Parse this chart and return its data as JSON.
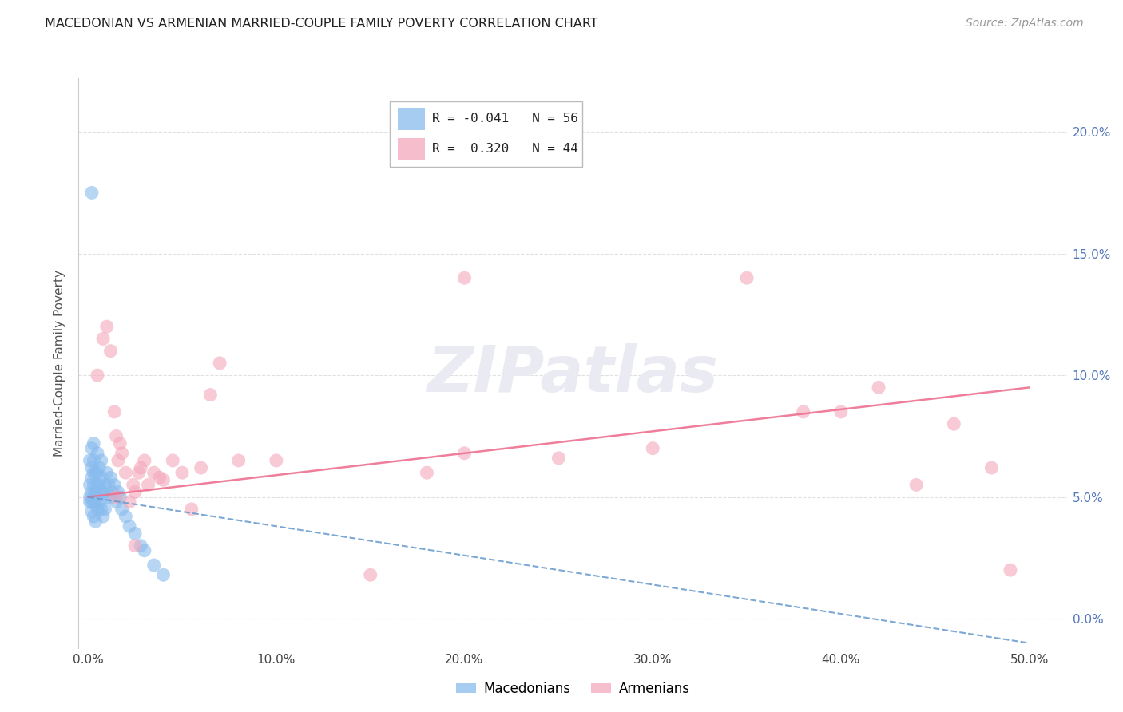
{
  "title": "MACEDONIAN VS ARMENIAN MARRIED-COUPLE FAMILY POVERTY CORRELATION CHART",
  "source": "Source: ZipAtlas.com",
  "xlabel_ticks": [
    "0.0%",
    "10.0%",
    "20.0%",
    "30.0%",
    "40.0%",
    "50.0%"
  ],
  "ylabel_ticks": [
    "0.0%",
    "5.0%",
    "10.0%",
    "15.0%",
    "20.0%"
  ],
  "xlabel_vals": [
    0.0,
    0.1,
    0.2,
    0.3,
    0.4,
    0.5
  ],
  "ylabel_vals": [
    0.0,
    0.05,
    0.1,
    0.15,
    0.2
  ],
  "xlim": [
    -0.005,
    0.52
  ],
  "ylim": [
    -0.012,
    0.222
  ],
  "macedonian_color": "#88BBEE",
  "armenian_color": "#F4A8BC",
  "macedonian_line_color": "#6699CC",
  "armenian_line_color": "#EE7090",
  "grid_color": "#DDDDDD",
  "tick_color": "#5577BB",
  "legend_macedonian_R": "-0.041",
  "legend_macedonian_N": "56",
  "legend_armenian_R": "0.320",
  "legend_armenian_N": "44",
  "watermark": "ZIPatlas",
  "macedonian_x": [
    0.001,
    0.001,
    0.001,
    0.001,
    0.002,
    0.002,
    0.002,
    0.002,
    0.002,
    0.002,
    0.003,
    0.003,
    0.003,
    0.003,
    0.003,
    0.003,
    0.003,
    0.004,
    0.004,
    0.004,
    0.004,
    0.005,
    0.005,
    0.005,
    0.005,
    0.005,
    0.006,
    0.006,
    0.006,
    0.007,
    0.007,
    0.007,
    0.007,
    0.008,
    0.008,
    0.009,
    0.009,
    0.01,
    0.01,
    0.011,
    0.012,
    0.012,
    0.013,
    0.014,
    0.015,
    0.016,
    0.017,
    0.018,
    0.02,
    0.022,
    0.025,
    0.028,
    0.03,
    0.035,
    0.04,
    0.002
  ],
  "macedonian_y": [
    0.048,
    0.05,
    0.055,
    0.065,
    0.044,
    0.048,
    0.052,
    0.058,
    0.062,
    0.07,
    0.042,
    0.048,
    0.05,
    0.055,
    0.06,
    0.065,
    0.072,
    0.04,
    0.047,
    0.052,
    0.06,
    0.045,
    0.05,
    0.055,
    0.06,
    0.068,
    0.048,
    0.055,
    0.062,
    0.045,
    0.052,
    0.058,
    0.065,
    0.042,
    0.052,
    0.045,
    0.055,
    0.05,
    0.06,
    0.055,
    0.05,
    0.058,
    0.052,
    0.055,
    0.048,
    0.052,
    0.05,
    0.045,
    0.042,
    0.038,
    0.035,
    0.03,
    0.028,
    0.022,
    0.018,
    0.175
  ],
  "armenian_x": [
    0.005,
    0.008,
    0.01,
    0.012,
    0.014,
    0.015,
    0.016,
    0.017,
    0.018,
    0.02,
    0.022,
    0.024,
    0.025,
    0.027,
    0.028,
    0.03,
    0.032,
    0.035,
    0.038,
    0.04,
    0.045,
    0.05,
    0.055,
    0.06,
    0.065,
    0.07,
    0.08,
    0.1,
    0.15,
    0.18,
    0.2,
    0.25,
    0.3,
    0.35,
    0.38,
    0.4,
    0.42,
    0.44,
    0.46,
    0.48,
    0.49,
    0.015,
    0.025,
    0.2
  ],
  "armenian_y": [
    0.1,
    0.115,
    0.12,
    0.11,
    0.085,
    0.075,
    0.065,
    0.072,
    0.068,
    0.06,
    0.048,
    0.055,
    0.052,
    0.06,
    0.062,
    0.065,
    0.055,
    0.06,
    0.058,
    0.057,
    0.065,
    0.06,
    0.045,
    0.062,
    0.092,
    0.105,
    0.065,
    0.065,
    0.018,
    0.06,
    0.068,
    0.066,
    0.07,
    0.14,
    0.085,
    0.085,
    0.095,
    0.055,
    0.08,
    0.062,
    0.02,
    0.05,
    0.03,
    0.14
  ]
}
